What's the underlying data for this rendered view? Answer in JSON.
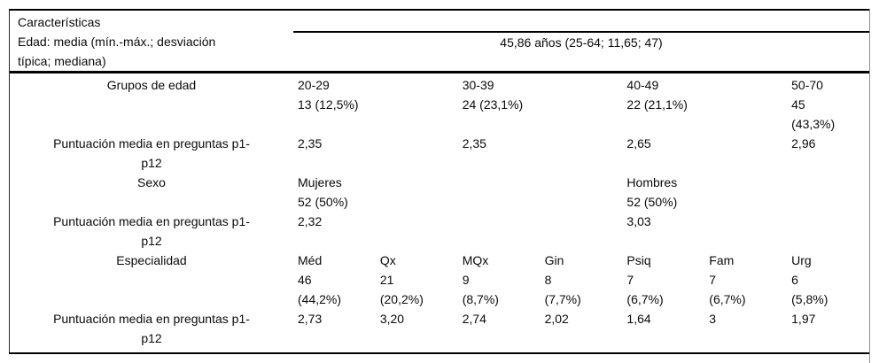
{
  "header": {
    "title": "Características",
    "age_label_line1": "Edad: media (mín.-máx.; desviación",
    "age_label_line2": "típica; mediana)",
    "age_summary": "45,86 años (25-64; 11,65; 47)"
  },
  "score_label": {
    "line1": "Puntuación media en preguntas p1-",
    "line2": "p12"
  },
  "age_groups": {
    "label": "Grupos de edad",
    "groups": [
      {
        "range": "20-29",
        "count": "13 (12,5%)",
        "score": "2,35"
      },
      {
        "range": "30-39",
        "count": "24 (23,1%)",
        "score": "2,35"
      },
      {
        "range": "40-49",
        "count": "22 (21,1%)",
        "score": "2,65"
      },
      {
        "range": "50-70",
        "count_line1": "45",
        "count_line2": "(43,3%)",
        "score": "2,96"
      }
    ]
  },
  "sex": {
    "label": "Sexo",
    "groups": [
      {
        "name": "Mujeres",
        "count": "52 (50%)",
        "score": "2,32"
      },
      {
        "name": "Hombres",
        "count": "52 (50%)",
        "score": "3,03"
      }
    ]
  },
  "specialty": {
    "label": "Especialidad",
    "cols": [
      {
        "name": "Méd",
        "count": "46",
        "pct": "(44,2%)",
        "score": "2,73"
      },
      {
        "name": "Qx",
        "count": "21",
        "pct": "(20,2%)",
        "score": "3,20"
      },
      {
        "name": "MQx",
        "count": "9",
        "pct": "(8,7%)",
        "score": "2,74"
      },
      {
        "name": "Gin",
        "count": "8",
        "pct": "(7,7%)",
        "score": "2,02"
      },
      {
        "name": "Psiq",
        "count": "7",
        "pct": "(6,7%)",
        "score": "1,64"
      },
      {
        "name": "Fam",
        "count": "7",
        "pct": "(6,7%)",
        "score": "3"
      },
      {
        "name": "Urg",
        "count": "6",
        "pct": "(5,8%)",
        "score": "1,97"
      }
    ]
  }
}
